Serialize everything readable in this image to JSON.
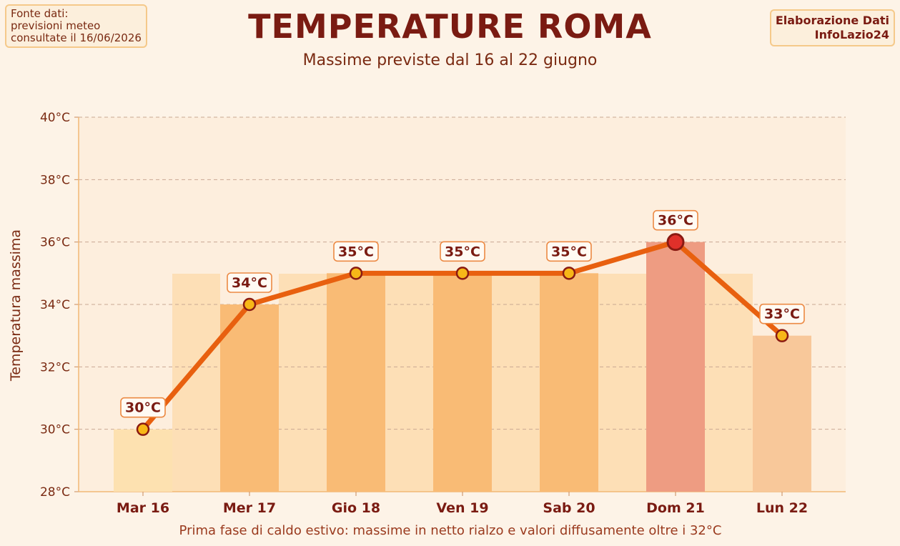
{
  "source_note": [
    "Fonte dati:",
    "previsioni meteo",
    "consultate il 16/06/2026"
  ],
  "credit": [
    "Elaborazione Dati",
    "InfoLazio24"
  ],
  "chart_data": {
    "type": "line",
    "title": "TEMPERATURE ROMA",
    "subtitle": "Massime previste dal 16 al 22 giugno",
    "ylabel": "Temperatura massima",
    "xlabel": "Prima fase di caldo estivo: massime in netto rialzo e valori diffusamente oltre i 32°C",
    "categories": [
      "Mar 16",
      "Mer 17",
      "Gio 18",
      "Ven 19",
      "Sab 20",
      "Dom 21",
      "Lun 22"
    ],
    "values": [
      30,
      34,
      35,
      35,
      35,
      36,
      33
    ],
    "data_labels": [
      "30°C",
      "34°C",
      "35°C",
      "35°C",
      "35°C",
      "36°C",
      "33°C"
    ],
    "ylim": [
      28,
      40
    ],
    "yticks": [
      28,
      30,
      32,
      34,
      36,
      38,
      40
    ],
    "ytick_labels": [
      "28°C",
      "30°C",
      "32°C",
      "34°C",
      "36°C",
      "38°C",
      "40°C"
    ],
    "grid": true,
    "peak_index": 5,
    "colors": {
      "line": "#e8600f",
      "marker": "#f7b718",
      "marker_edge": "#8a1a12",
      "peak_marker": "#e0302a",
      "bar_normal": "#f9bb75",
      "bar_peak": "#ee9c82",
      "bar_first": "#fde1b0",
      "bar_last": "#f8c89a",
      "plot_bg": "#fdeedd",
      "band": "#fddfb6"
    }
  }
}
